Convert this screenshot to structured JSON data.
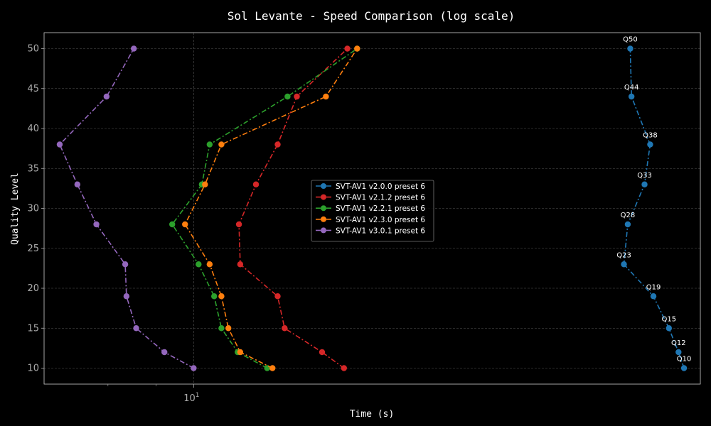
{
  "chart_data": {
    "type": "line",
    "title": "Sol Levante - Speed Comparison (log scale)",
    "xlabel": "Time (s)",
    "ylabel": "Quality Level",
    "xscale": "log",
    "xlim": [
      4.1,
      205
    ],
    "ylim": [
      8,
      52
    ],
    "yticks": [
      10,
      15,
      20,
      25,
      30,
      35,
      40,
      45,
      50
    ],
    "xticks_major": [
      {
        "value": 10,
        "label": "10^1"
      }
    ],
    "xticks_minor": [
      6,
      8
    ],
    "grid": true,
    "legend": {
      "placement": "center"
    },
    "series": [
      {
        "name": "SVT-AV1 v2.0.0 preset 6",
        "color": "#1f77b4",
        "points": [
          [
            186,
            10
          ],
          [
            180,
            12
          ],
          [
            170,
            15
          ],
          [
            155,
            19
          ],
          [
            130,
            23
          ],
          [
            133,
            28
          ],
          [
            147,
            33
          ],
          [
            152,
            38
          ],
          [
            136,
            44
          ],
          [
            135,
            50
          ]
        ]
      },
      {
        "name": "SVT-AV1 v2.1.2 preset 6",
        "color": "#d62728",
        "points": [
          [
            24.5,
            10
          ],
          [
            21.5,
            12
          ],
          [
            17.2,
            15
          ],
          [
            16.5,
            19
          ],
          [
            13.2,
            23
          ],
          [
            13.1,
            28
          ],
          [
            14.5,
            33
          ],
          [
            16.5,
            38
          ],
          [
            18.5,
            44
          ],
          [
            25,
            50
          ]
        ]
      },
      {
        "name": "SVT-AV1 v2.2.1 preset 6",
        "color": "#2ca02c",
        "points": [
          [
            15.5,
            10
          ],
          [
            13,
            12
          ],
          [
            11.8,
            15
          ],
          [
            11.3,
            19
          ],
          [
            10.3,
            23
          ],
          [
            8.8,
            28
          ],
          [
            10.5,
            33
          ],
          [
            11,
            38
          ],
          [
            17.5,
            44
          ],
          [
            26.5,
            50
          ]
        ]
      },
      {
        "name": "SVT-AV1 v2.3.0 preset 6",
        "color": "#ff7f0e",
        "points": [
          [
            16,
            10
          ],
          [
            13.2,
            12
          ],
          [
            12.3,
            15
          ],
          [
            11.8,
            19
          ],
          [
            11,
            23
          ],
          [
            9.5,
            28
          ],
          [
            10.7,
            33
          ],
          [
            11.8,
            38
          ],
          [
            22,
            44
          ],
          [
            26.5,
            50
          ]
        ]
      },
      {
        "name": "SVT-AV1 v3.0.1 preset 6",
        "color": "#9467bd",
        "points": [
          [
            10,
            10
          ],
          [
            8.4,
            12
          ],
          [
            7.1,
            15
          ],
          [
            6.7,
            19
          ],
          [
            6.65,
            23
          ],
          [
            5.6,
            28
          ],
          [
            5,
            33
          ],
          [
            4.5,
            38
          ],
          [
            5.95,
            44
          ],
          [
            7,
            50
          ]
        ]
      }
    ],
    "annotations": [
      {
        "text": "Q10",
        "x": 186,
        "y": 10
      },
      {
        "text": "Q12",
        "x": 180,
        "y": 12
      },
      {
        "text": "Q15",
        "x": 170,
        "y": 15
      },
      {
        "text": "Q19",
        "x": 155,
        "y": 19
      },
      {
        "text": "Q23",
        "x": 130,
        "y": 23
      },
      {
        "text": "Q28",
        "x": 133,
        "y": 28
      },
      {
        "text": "Q33",
        "x": 147,
        "y": 33
      },
      {
        "text": "Q38",
        "x": 152,
        "y": 38
      },
      {
        "text": "Q44",
        "x": 136,
        "y": 44
      },
      {
        "text": "Q50",
        "x": 135,
        "y": 50
      }
    ]
  }
}
